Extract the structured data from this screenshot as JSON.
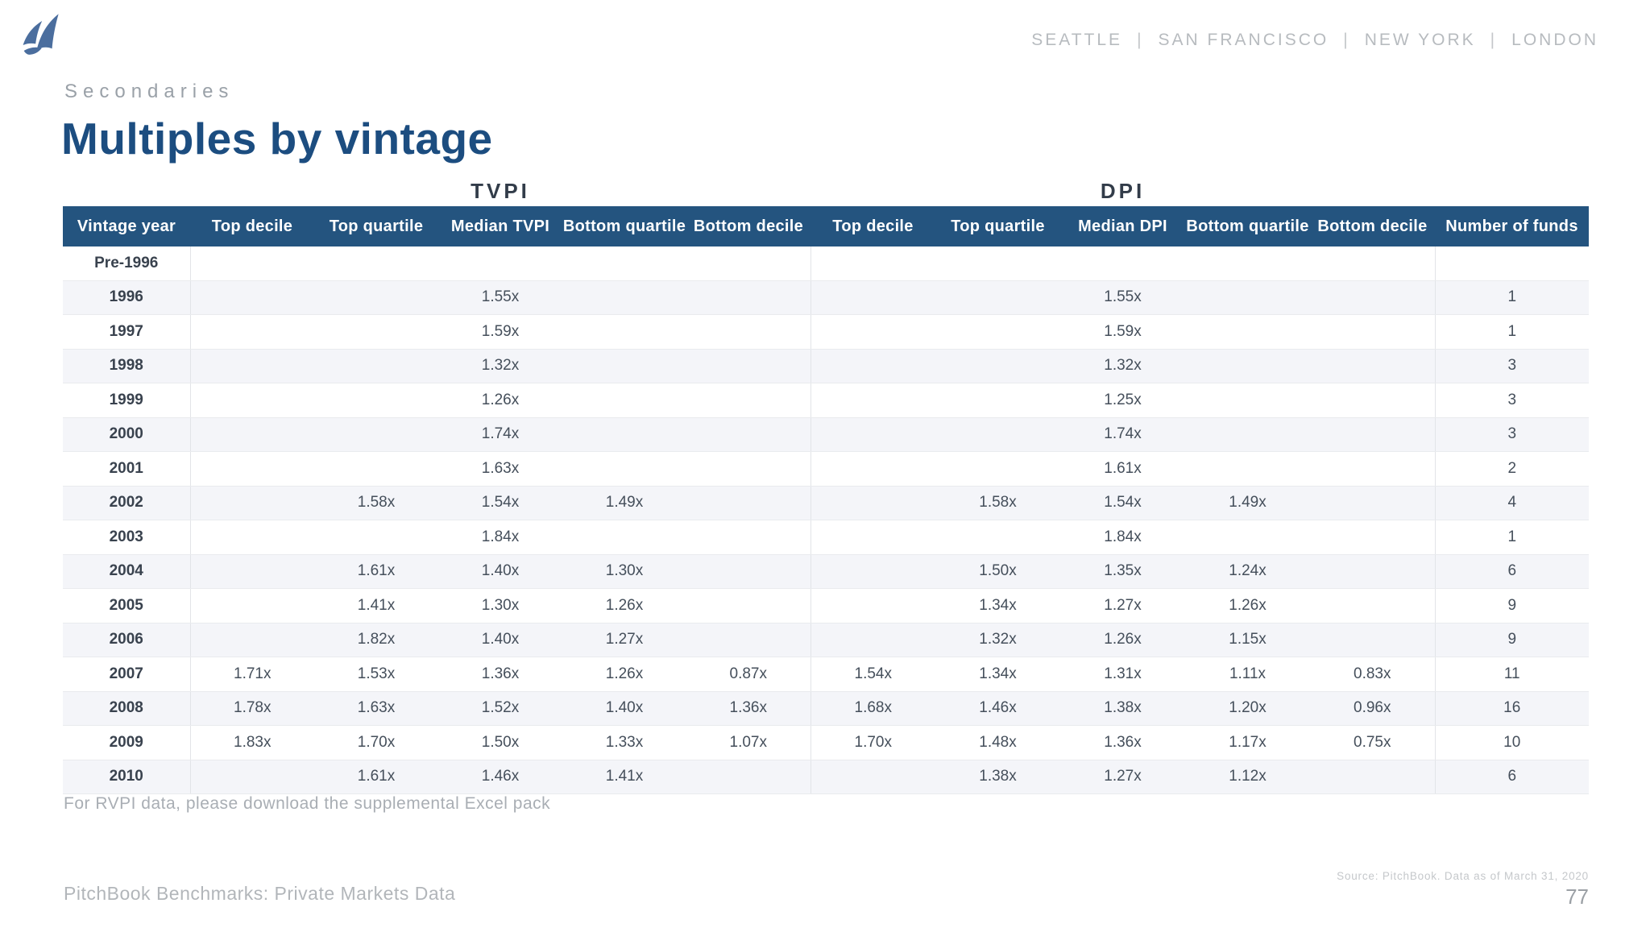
{
  "header": {
    "eyebrow": "Secondaries",
    "title": "Multiples by vintage",
    "cities": [
      "SEATTLE",
      "SAN FRANCISCO",
      "NEW YORK",
      "LONDON"
    ],
    "city_separator": "|"
  },
  "colors": {
    "brand_navy": "#1c4d80",
    "table_header_bar": "#24547f",
    "logo_blue": "#4b6e9e",
    "row_stripe": "#f4f5f9"
  },
  "table": {
    "group_labels": {
      "tvpi": "TVPI",
      "dpi": "DPI"
    },
    "columns": [
      "Vintage year",
      "Top decile",
      "Top quartile",
      "Median TVPI",
      "Bottom quartile",
      "Bottom decile",
      "Top decile",
      "Top quartile",
      "Median DPI",
      "Bottom quartile",
      "Bottom decile",
      "Number of funds"
    ],
    "rows": [
      {
        "year": "Pre-1996",
        "tvpi": [
          "",
          "",
          "",
          "",
          ""
        ],
        "dpi": [
          "",
          "",
          "",
          "",
          ""
        ],
        "funds": ""
      },
      {
        "year": "1996",
        "tvpi": [
          "",
          "",
          "1.55x",
          "",
          ""
        ],
        "dpi": [
          "",
          "",
          "1.55x",
          "",
          ""
        ],
        "funds": "1"
      },
      {
        "year": "1997",
        "tvpi": [
          "",
          "",
          "1.59x",
          "",
          ""
        ],
        "dpi": [
          "",
          "",
          "1.59x",
          "",
          ""
        ],
        "funds": "1"
      },
      {
        "year": "1998",
        "tvpi": [
          "",
          "",
          "1.32x",
          "",
          ""
        ],
        "dpi": [
          "",
          "",
          "1.32x",
          "",
          ""
        ],
        "funds": "3"
      },
      {
        "year": "1999",
        "tvpi": [
          "",
          "",
          "1.26x",
          "",
          ""
        ],
        "dpi": [
          "",
          "",
          "1.25x",
          "",
          ""
        ],
        "funds": "3"
      },
      {
        "year": "2000",
        "tvpi": [
          "",
          "",
          "1.74x",
          "",
          ""
        ],
        "dpi": [
          "",
          "",
          "1.74x",
          "",
          ""
        ],
        "funds": "3"
      },
      {
        "year": "2001",
        "tvpi": [
          "",
          "",
          "1.63x",
          "",
          ""
        ],
        "dpi": [
          "",
          "",
          "1.61x",
          "",
          ""
        ],
        "funds": "2"
      },
      {
        "year": "2002",
        "tvpi": [
          "",
          "1.58x",
          "1.54x",
          "1.49x",
          ""
        ],
        "dpi": [
          "",
          "1.58x",
          "1.54x",
          "1.49x",
          ""
        ],
        "funds": "4"
      },
      {
        "year": "2003",
        "tvpi": [
          "",
          "",
          "1.84x",
          "",
          ""
        ],
        "dpi": [
          "",
          "",
          "1.84x",
          "",
          ""
        ],
        "funds": "1"
      },
      {
        "year": "2004",
        "tvpi": [
          "",
          "1.61x",
          "1.40x",
          "1.30x",
          ""
        ],
        "dpi": [
          "",
          "1.50x",
          "1.35x",
          "1.24x",
          ""
        ],
        "funds": "6"
      },
      {
        "year": "2005",
        "tvpi": [
          "",
          "1.41x",
          "1.30x",
          "1.26x",
          ""
        ],
        "dpi": [
          "",
          "1.34x",
          "1.27x",
          "1.26x",
          ""
        ],
        "funds": "9"
      },
      {
        "year": "2006",
        "tvpi": [
          "",
          "1.82x",
          "1.40x",
          "1.27x",
          ""
        ],
        "dpi": [
          "",
          "1.32x",
          "1.26x",
          "1.15x",
          ""
        ],
        "funds": "9"
      },
      {
        "year": "2007",
        "tvpi": [
          "1.71x",
          "1.53x",
          "1.36x",
          "1.26x",
          "0.87x"
        ],
        "dpi": [
          "1.54x",
          "1.34x",
          "1.31x",
          "1.11x",
          "0.83x"
        ],
        "funds": "11"
      },
      {
        "year": "2008",
        "tvpi": [
          "1.78x",
          "1.63x",
          "1.52x",
          "1.40x",
          "1.36x"
        ],
        "dpi": [
          "1.68x",
          "1.46x",
          "1.38x",
          "1.20x",
          "0.96x"
        ],
        "funds": "16"
      },
      {
        "year": "2009",
        "tvpi": [
          "1.83x",
          "1.70x",
          "1.50x",
          "1.33x",
          "1.07x"
        ],
        "dpi": [
          "1.70x",
          "1.48x",
          "1.36x",
          "1.17x",
          "0.75x"
        ],
        "funds": "10"
      },
      {
        "year": "2010",
        "tvpi": [
          "",
          "1.61x",
          "1.46x",
          "1.41x",
          ""
        ],
        "dpi": [
          "",
          "1.38x",
          "1.27x",
          "1.12x",
          ""
        ],
        "funds": "6"
      }
    ],
    "footnote": "For RVPI data, please download the supplemental Excel pack"
  },
  "footer": {
    "left": "PitchBook Benchmarks: Private Markets Data",
    "source": "Source: PitchBook. Data as of March 31, 2020",
    "page": "77"
  }
}
